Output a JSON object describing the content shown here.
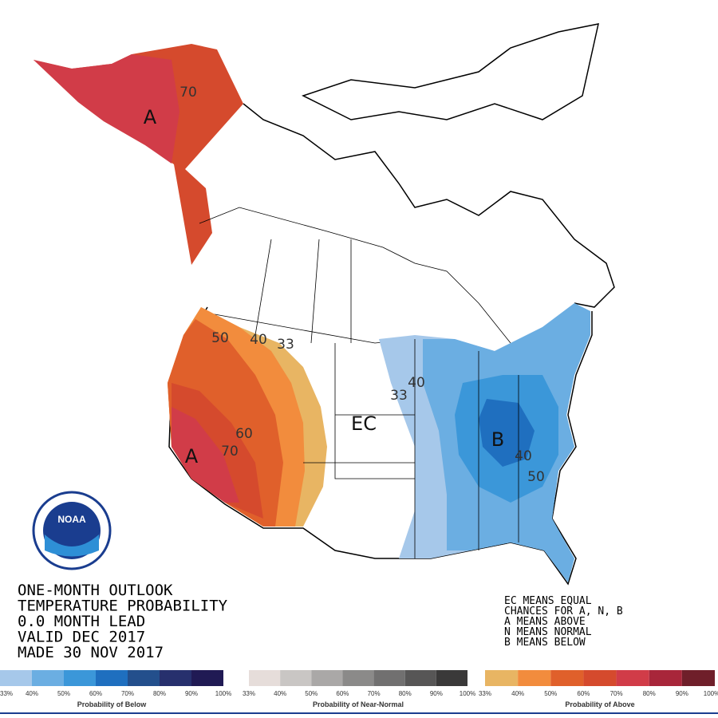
{
  "map_labels": [
    "70",
    "A",
    "50",
    "40",
    "33",
    "60",
    "70",
    "A",
    "EC",
    "40",
    "33",
    "B",
    "40",
    "50"
  ],
  "logo_text": "NOAA",
  "title_lines": [
    "ONE-MONTH OUTLOOK",
    "TEMPERATURE PROBABILITY",
    "0.0 MONTH LEAD",
    "VALID DEC 2017",
    "MADE 30 NOV 2017"
  ],
  "legend_notes": [
    "EC MEANS EQUAL",
    "CHANCES FOR A, N, B",
    "A MEANS ABOVE",
    "N MEANS NORMAL",
    "B MEANS BELOW"
  ],
  "colorbars": [
    {
      "title": "Probability of Below",
      "labels": [
        "33%",
        "40%",
        "50%",
        "60%",
        "70%",
        "80%",
        "90%",
        "100%"
      ],
      "colors": [
        "#a6c8ea",
        "#6baee2",
        "#3b97d9",
        "#1f6fbf",
        "#234f8c",
        "#27306d",
        "#201a54"
      ]
    },
    {
      "title": "Probability of Near-Normal",
      "labels": [
        "33%",
        "40%",
        "50%",
        "60%",
        "70%",
        "80%",
        "90%",
        "100%"
      ],
      "colors": [
        "#e6ddda",
        "#c9c6c4",
        "#aaa8a7",
        "#8b8a89",
        "#717070",
        "#575656",
        "#3a3939"
      ]
    },
    {
      "title": "Probability of Above",
      "labels": [
        "33%",
        "40%",
        "50%",
        "60%",
        "70%",
        "80%",
        "90%",
        "100%"
      ],
      "colors": [
        "#e8b563",
        "#f28c3d",
        "#e0602b",
        "#d54a2d",
        "#d13c48",
        "#a8263a",
        "#6f1f2a"
      ]
    }
  ]
}
